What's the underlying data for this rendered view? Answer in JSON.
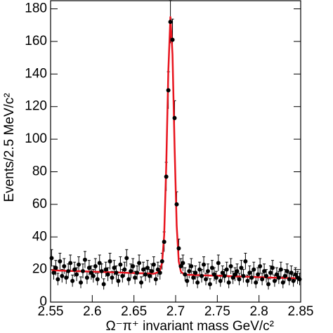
{
  "chart_data": {
    "type": "scatter",
    "xlabel": "Ω⁻π⁺ invariant mass GeV/c²",
    "ylabel": "Events/2.5 MeV/c²",
    "xlim": [
      2.55,
      2.85
    ],
    "ylim": [
      0,
      185
    ],
    "xticks": [
      2.55,
      2.6,
      2.65,
      2.7,
      2.75,
      2.8,
      2.85
    ],
    "yticks": [
      0,
      20,
      40,
      60,
      80,
      100,
      120,
      140,
      160,
      180
    ],
    "x": [
      2.55125,
      2.55375,
      2.55625,
      2.55875,
      2.56125,
      2.56375,
      2.56625,
      2.56875,
      2.57125,
      2.57375,
      2.57625,
      2.57875,
      2.58125,
      2.58375,
      2.58625,
      2.58875,
      2.59125,
      2.59375,
      2.59625,
      2.59875,
      2.60125,
      2.60375,
      2.60625,
      2.60875,
      2.61125,
      2.61375,
      2.61625,
      2.61875,
      2.62125,
      2.62375,
      2.62625,
      2.62875,
      2.63125,
      2.63375,
      2.63625,
      2.63875,
      2.64125,
      2.64375,
      2.64625,
      2.64875,
      2.65125,
      2.65375,
      2.65625,
      2.65875,
      2.66125,
      2.66375,
      2.66625,
      2.66875,
      2.67125,
      2.67375,
      2.67625,
      2.67875,
      2.68125,
      2.68375,
      2.68625,
      2.68875,
      2.69125,
      2.69375,
      2.69625,
      2.69875,
      2.70125,
      2.70375,
      2.70625,
      2.70875,
      2.71125,
      2.71375,
      2.71625,
      2.71875,
      2.72125,
      2.72375,
      2.72625,
      2.72875,
      2.73125,
      2.73375,
      2.73625,
      2.73875,
      2.74125,
      2.74375,
      2.74625,
      2.74875,
      2.75125,
      2.75375,
      2.75625,
      2.75875,
      2.76125,
      2.76375,
      2.76625,
      2.76875,
      2.77125,
      2.77375,
      2.77625,
      2.77875,
      2.78125,
      2.78375,
      2.78625,
      2.78875,
      2.79125,
      2.79375,
      2.79625,
      2.79875,
      2.80125,
      2.80375,
      2.80625,
      2.80875,
      2.81125,
      2.81375,
      2.81625,
      2.81875,
      2.82125,
      2.82375,
      2.82625,
      2.82875,
      2.83125,
      2.83375,
      2.83625,
      2.83875,
      2.84125,
      2.84375,
      2.84625,
      2.84875
    ],
    "data": {
      "color": "#000000",
      "values": [
        27,
        18,
        21,
        14,
        25,
        16,
        22,
        15,
        19,
        24,
        13,
        20,
        17,
        23,
        12,
        19,
        26,
        15,
        21,
        18,
        16,
        22,
        14,
        24,
        19,
        11,
        20,
        17,
        25,
        15,
        21,
        18,
        13,
        23,
        16,
        20,
        27,
        14,
        19,
        22,
        15,
        18,
        24,
        12,
        20,
        17,
        21,
        16,
        19,
        23,
        14,
        20,
        18,
        25,
        37,
        77,
        130,
        172,
        161,
        113,
        60,
        33,
        22,
        24,
        17,
        13,
        19,
        22,
        15,
        18,
        12,
        20,
        16,
        23,
        14,
        19,
        11,
        21,
        17,
        15,
        24,
        13,
        18,
        16,
        20,
        12,
        22,
        15,
        17,
        19,
        14,
        21,
        16,
        25,
        13,
        18,
        15,
        20,
        12,
        17,
        22,
        14,
        19,
        16,
        11,
        18,
        21,
        13,
        17,
        15,
        20,
        12,
        16,
        19,
        14,
        18,
        13,
        17,
        15,
        14
      ],
      "errors": [
        5.2,
        4.2,
        4.6,
        3.7,
        5,
        4,
        4.7,
        3.9,
        4.4,
        4.9,
        3.6,
        4.5,
        4.1,
        4.8,
        3.5,
        4.4,
        5.1,
        3.9,
        4.6,
        4.2,
        4,
        4.7,
        3.7,
        4.9,
        4.4,
        3.3,
        4.5,
        4.1,
        5,
        3.9,
        4.6,
        4.2,
        3.6,
        4.8,
        4,
        4.5,
        5.2,
        3.7,
        4.4,
        4.7,
        3.9,
        4.2,
        4.9,
        3.5,
        4.5,
        4.1,
        4.6,
        4,
        4.4,
        4.8,
        3.7,
        4.5,
        4.2,
        5,
        6.1,
        8.8,
        11.4,
        13.1,
        12.7,
        10.6,
        7.7,
        5.7,
        4.7,
        4.9,
        4.1,
        3.6,
        4.4,
        4.7,
        3.9,
        4.2,
        3.5,
        4.5,
        4,
        4.8,
        3.7,
        4.4,
        3.3,
        4.6,
        4.1,
        3.9,
        4.9,
        3.6,
        4.2,
        4,
        4.5,
        3.5,
        4.7,
        3.9,
        4.1,
        4.4,
        3.7,
        4.6,
        4,
        5,
        3.6,
        4.2,
        3.9,
        4.5,
        3.5,
        4.1,
        4.7,
        3.7,
        4.4,
        4,
        3.3,
        4.2,
        4.6,
        3.6,
        4.1,
        3.9,
        4.5,
        3.5,
        4,
        4.4,
        3.7,
        4.2,
        3.6,
        4.1,
        3.9,
        3.7
      ]
    },
    "fit": {
      "color": "#e8141e",
      "values": [
        19.5,
        19.5,
        19.4,
        19.4,
        19.3,
        19.3,
        19.3,
        19.2,
        19.2,
        19.1,
        19.1,
        19.0,
        19.0,
        19.0,
        18.9,
        18.9,
        18.8,
        18.8,
        18.7,
        18.7,
        18.7,
        18.6,
        18.6,
        18.5,
        18.5,
        18.5,
        18.4,
        18.4,
        18.3,
        18.3,
        18.2,
        18.2,
        18.2,
        18.1,
        18.1,
        18.0,
        18.0,
        17.9,
        17.9,
        17.9,
        17.8,
        17.8,
        17.7,
        17.7,
        17.7,
        17.6,
        17.6,
        17.5,
        17.5,
        17.4,
        17.8,
        18.3,
        19.5,
        24,
        41,
        84,
        142,
        175,
        152,
        95,
        47,
        25,
        18.8,
        17.6,
        17.0,
        16.8,
        16.7,
        16.7,
        16.6,
        16.6,
        16.6,
        16.5,
        16.5,
        16.4,
        16.4,
        16.4,
        16.3,
        16.3,
        16.2,
        16.2,
        16.1,
        16.1,
        16.1,
        16.0,
        16.0,
        15.9,
        15.9,
        15.8,
        15.8,
        15.8,
        15.7,
        15.7,
        15.6,
        15.6,
        15.6,
        15.5,
        15.5,
        15.4,
        15.4,
        15.3,
        15.3,
        15.3,
        15.2,
        15.2,
        15.1,
        15.1,
        15.0,
        15.0,
        15.0,
        14.9,
        14.9,
        14.8,
        14.8,
        14.8,
        14.7,
        14.7,
        14.6,
        14.6,
        14.5,
        14.5
      ]
    }
  }
}
